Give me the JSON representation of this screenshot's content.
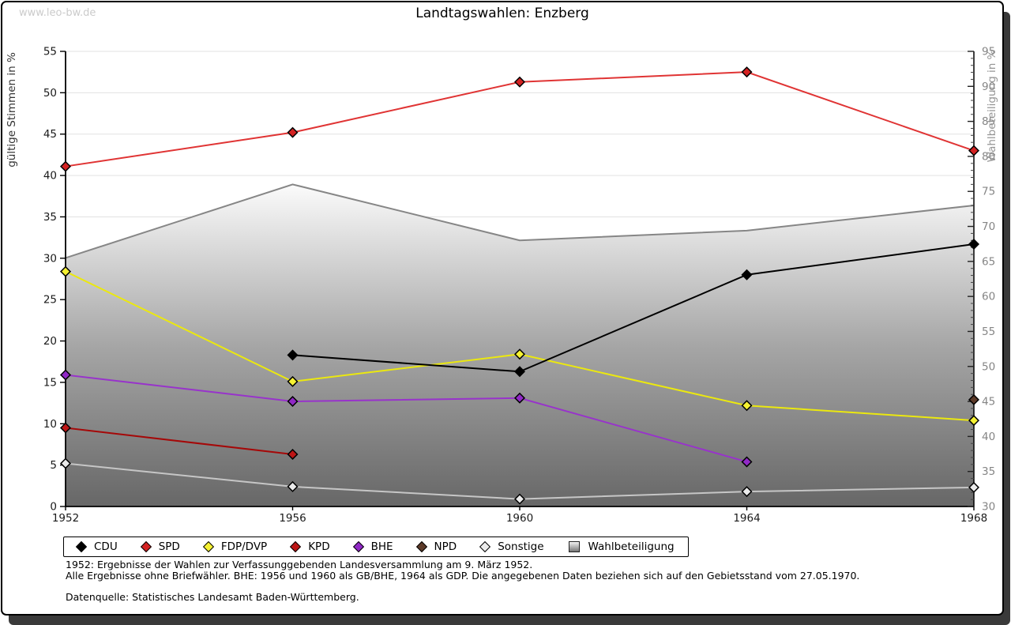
{
  "watermark": "www.leo-bw.de",
  "title": "Landtagswahlen: Enzberg",
  "footnotes": {
    "line1": "1952: Ergebnisse der Wahlen zur Verfassunggebenden Landesversammlung am 9. März 1952.",
    "line2": "Alle Ergebnisse ohne Briefwähler. BHE: 1956 und 1960 als GB/BHE, 1964 als GDP. Die angegebenen Daten beziehen sich auf den Gebietsstand vom 27.05.1970.",
    "line3": "Datenquelle: Statistisches Landesamt Baden-Württemberg."
  },
  "chart_data": {
    "type": "line",
    "title": "Landtagswahlen: Enzberg",
    "categories": [
      "1952",
      "1956",
      "1960",
      "1964",
      "1968"
    ],
    "left_axis": {
      "label": "gültige Stimmen in %",
      "min": 0,
      "max": 55,
      "tick_step": 5
    },
    "right_axis": {
      "label": "Wahlbeteiligung in %",
      "min": 30,
      "max": 95,
      "tick_step": 5,
      "minor_tick_step": 1
    },
    "grid": "horizontal",
    "legend_position": "bottom",
    "series": [
      {
        "name": "CDU",
        "axis": "left",
        "color": "#000000",
        "marker": "#000000",
        "values": [
          null,
          18.3,
          16.3,
          28.0,
          31.7
        ]
      },
      {
        "name": "SPD",
        "axis": "left",
        "color": "#e03434",
        "marker": "#d42222",
        "values": [
          41.1,
          45.2,
          51.3,
          52.5,
          43.0
        ]
      },
      {
        "name": "FDP/DVP",
        "axis": "left",
        "color": "#ebe80f",
        "marker": "#f6f233",
        "values": [
          28.4,
          15.1,
          18.4,
          12.2,
          10.4
        ]
      },
      {
        "name": "KPD",
        "axis": "left",
        "color": "#a50808",
        "marker": "#bd1515",
        "values": [
          9.5,
          6.3,
          null,
          null,
          null
        ]
      },
      {
        "name": "BHE",
        "axis": "left",
        "color": "#9833cb",
        "marker": "#9129c6",
        "values": [
          15.9,
          12.7,
          13.1,
          5.4,
          null
        ]
      },
      {
        "name": "NPD",
        "axis": "left",
        "color": "#5c3a28",
        "marker": "#5c3a28",
        "values": [
          null,
          null,
          null,
          null,
          12.9
        ]
      },
      {
        "name": "Sonstige",
        "axis": "left",
        "color": "#c6c6c6",
        "marker": "#ebebeb",
        "values": [
          5.2,
          2.4,
          0.9,
          1.8,
          2.3
        ]
      }
    ],
    "participation": {
      "name": "Wahlbeteiligung",
      "axis": "right",
      "type": "area",
      "values": [
        65.5,
        76.0,
        68.0,
        69.4,
        73.0
      ],
      "outline_color": "#868686",
      "gradient": [
        "#fbfbfb",
        "#a6a6a6",
        "#676767"
      ]
    }
  }
}
